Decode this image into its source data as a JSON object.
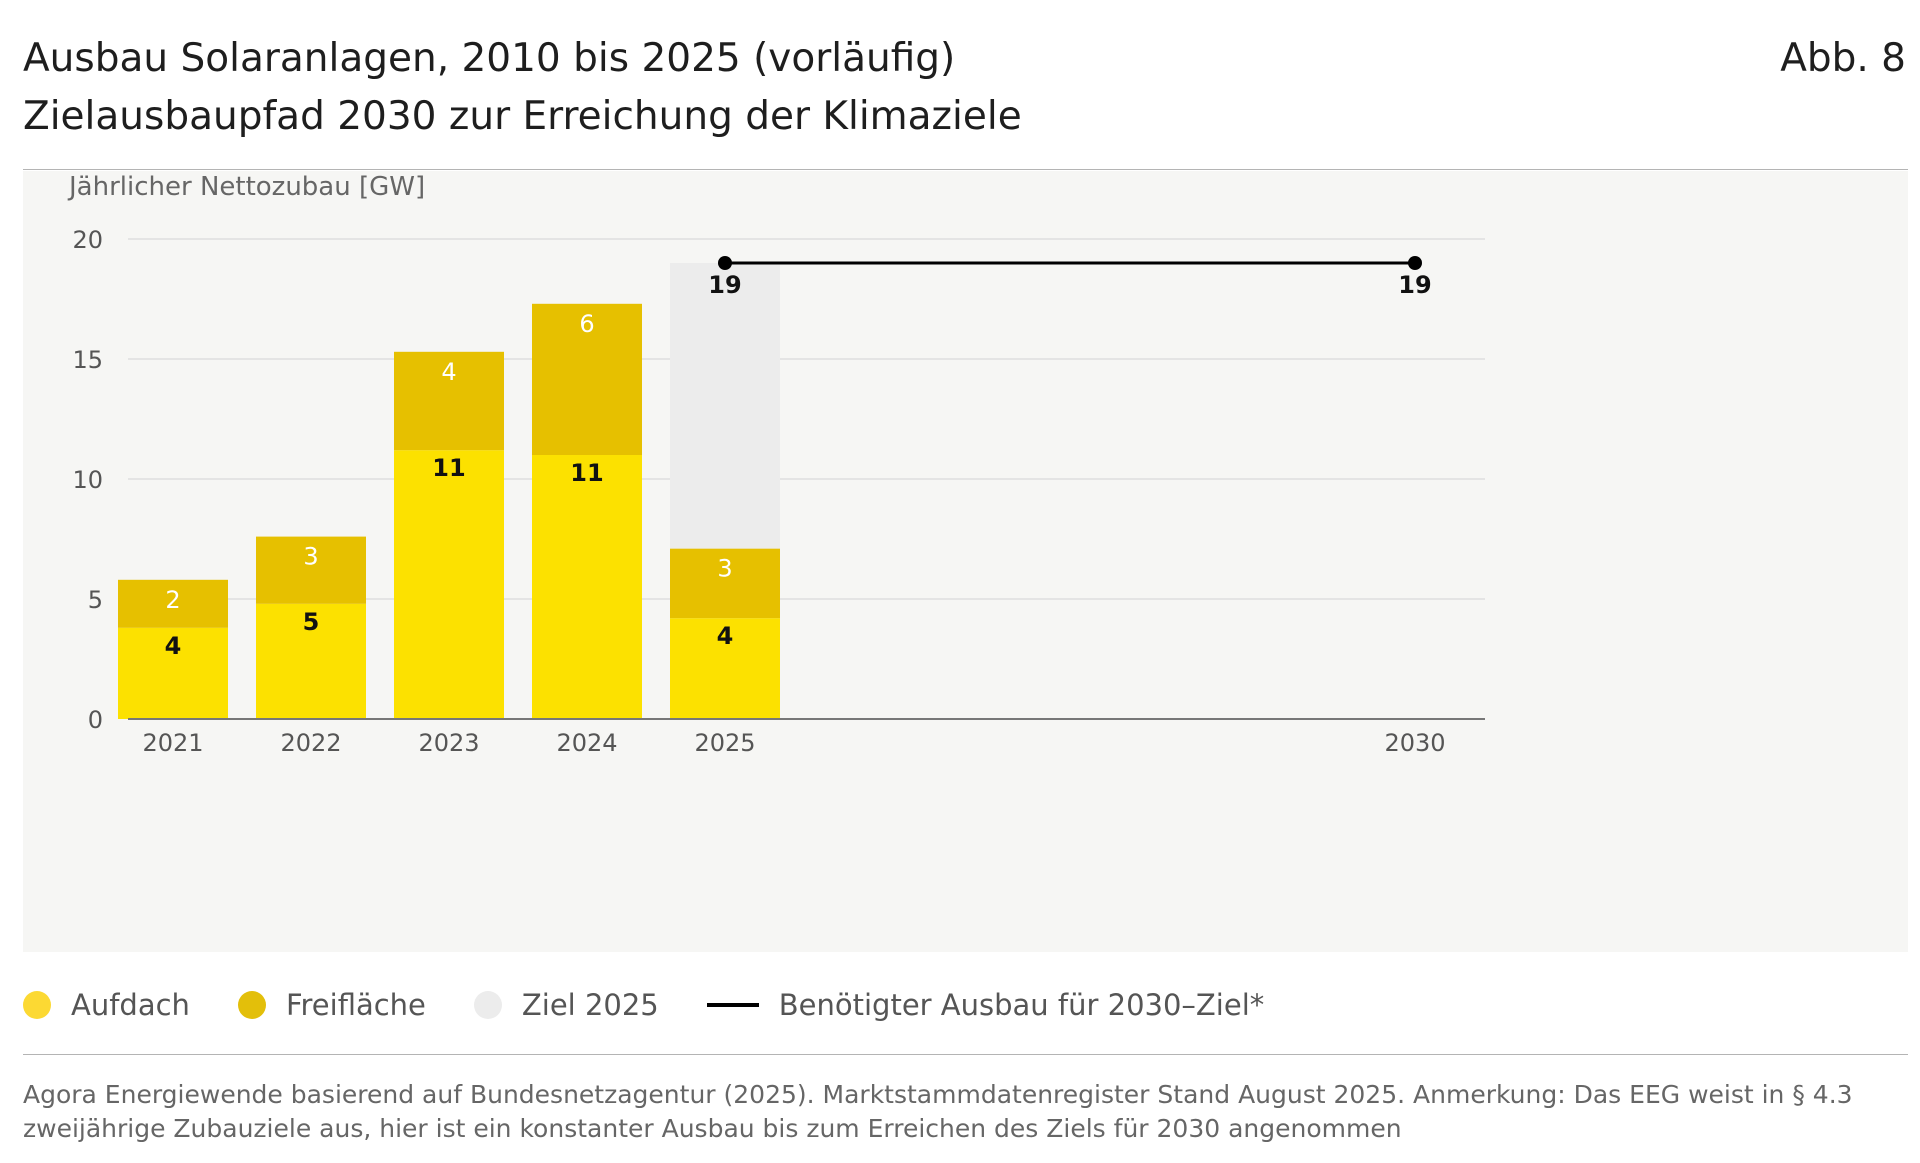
{
  "header": {
    "title_line1": "Ausbau Solaranlagen, 2010 bis 2025 (vorläufig)",
    "title_line2": "Zielausbaupfad 2030 zur Erreichung der Klimaziele",
    "figure_label": "Abb. 8"
  },
  "colors": {
    "aufdach": "#fce100",
    "freiflaeche": "#e6c000",
    "ziel": "#ececec",
    "legend_aufdach": "#fcd933",
    "legend_freiflaeche": "#e3bf0a",
    "legend_ziel": "#ececec",
    "target_line": "#000000",
    "grid": "#e4e4e4"
  },
  "legend": {
    "aufdach": "Aufdach",
    "freiflaeche": "Freifläche",
    "ziel": "Ziel 2025",
    "target": "Benötigter Ausbau für 2030–Ziel*"
  },
  "footer": {
    "source": "Agora Energiewende basierend auf Bundesnetzagentur (2025). Marktstammdatenregister Stand August 2025. Anmerkung: Das EEG weist in § 4.3 zweijährige Zubauziele aus, hier ist ein konstanter Ausbau bis zum Erreichen des Ziels für 2030 angenommen"
  },
  "chart_data": {
    "type": "bar",
    "stacked": true,
    "ylabel": "Jährlicher Nettozubau [GW]",
    "ylim": [
      0,
      20
    ],
    "yticks": [
      0,
      5,
      10,
      15,
      20
    ],
    "grid": true,
    "legend_position": "bottom-left",
    "categories": [
      "2021",
      "2022",
      "2023",
      "2024",
      "2025"
    ],
    "x_axis_labels": [
      "2021",
      "2022",
      "2023",
      "2024",
      "2025",
      "2030"
    ],
    "series": [
      {
        "name": "Aufdach",
        "values": [
          3.8,
          4.8,
          11.2,
          11.0,
          4.2
        ],
        "labels": [
          "4",
          "5",
          "11",
          "11",
          "4"
        ],
        "color": "#fce100"
      },
      {
        "name": "Freifläche",
        "values": [
          2.0,
          2.8,
          4.1,
          6.3,
          2.9
        ],
        "labels": [
          "2",
          "3",
          "4",
          "6",
          "3"
        ],
        "color": "#e6c000"
      },
      {
        "name": "Ziel 2025",
        "values": [
          0,
          0,
          0,
          0,
          11.9
        ],
        "labels": [
          "",
          "",
          "",
          "",
          ""
        ],
        "color": "#ececec"
      }
    ],
    "target_line": {
      "name": "Benötigter Ausbau für 2030–Ziel*",
      "points": [
        {
          "x": "2025",
          "y": 19,
          "label": "19"
        },
        {
          "x": "2030",
          "y": 19,
          "label": "19"
        }
      ]
    }
  }
}
